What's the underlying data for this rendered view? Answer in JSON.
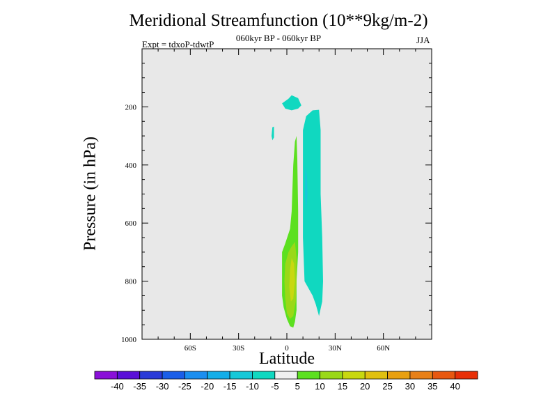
{
  "chart_data": {
    "type": "heatmap",
    "title": "Meridional Streamfunction (10**9kg/m-2)",
    "subtitle": "060kyr BP - 060kyr BP",
    "experiment": "Expt = tdxoP-tdwtP",
    "season": "JJA",
    "xlabel": "Latitude",
    "ylabel": "Pressure (in hPa)",
    "xlim": [
      -90,
      90
    ],
    "ylim": [
      0,
      1000
    ],
    "y_reversed": true,
    "plot_background": "#e8e8e8",
    "x_ticks": [
      {
        "value": -60,
        "label": "60S"
      },
      {
        "value": -30,
        "label": "30S"
      },
      {
        "value": 0,
        "label": "0"
      },
      {
        "value": 30,
        "label": "30N"
      },
      {
        "value": 60,
        "label": "60N"
      }
    ],
    "y_ticks": [
      {
        "value": 200,
        "label": "200"
      },
      {
        "value": 400,
        "label": "400"
      },
      {
        "value": 600,
        "label": "600"
      },
      {
        "value": 800,
        "label": "800"
      },
      {
        "value": 1000,
        "label": "1000"
      }
    ],
    "colorbar": {
      "colors": [
        "#8a10d8",
        "#5a10d8",
        "#2a3ad8",
        "#1a5ee8",
        "#1a8ef0",
        "#14aee8",
        "#16c8d8",
        "#10d8c0",
        "#f0f0f0",
        "#5ce020",
        "#9ad818",
        "#c8d810",
        "#e0c010",
        "#e8a010",
        "#e88018",
        "#e85810",
        "#e83008"
      ],
      "labels": [
        "-40",
        "-35",
        "-30",
        "-25",
        "-20",
        "-15",
        "-10",
        "-5",
        "5",
        "10",
        "15",
        "20",
        "25",
        "30",
        "35",
        "40"
      ]
    },
    "contours": [
      {
        "level": "-10 to -5",
        "color": "#10d8c0",
        "points": [
          [
            -3,
            188
          ],
          [
            1,
            172
          ],
          [
            3,
            160
          ],
          [
            7,
            170
          ],
          [
            9,
            195
          ],
          [
            7,
            206
          ],
          [
            3,
            212
          ],
          [
            -1,
            206
          ]
        ]
      },
      {
        "level": "-10 to -5",
        "color": "#10d8c0",
        "points": [
          [
            -9,
            270
          ],
          [
            -8,
            268
          ],
          [
            -8,
            305
          ],
          [
            -9,
            315
          ],
          [
            -9.5,
            300
          ]
        ]
      },
      {
        "level": "-10 to -5",
        "color": "#10d8c0",
        "points": [
          [
            10,
            280
          ],
          [
            12,
            232
          ],
          [
            16,
            212
          ],
          [
            20,
            210
          ],
          [
            21,
            280
          ],
          [
            21,
            500
          ],
          [
            22,
            650
          ],
          [
            22.5,
            800
          ],
          [
            22,
            870
          ],
          [
            20,
            920
          ],
          [
            18,
            880
          ],
          [
            16,
            850
          ],
          [
            11,
            800
          ],
          [
            10,
            650
          ],
          [
            10,
            450
          ]
        ]
      },
      {
        "level": "-15 to -10",
        "color": "#16c8d8",
        "points": [
          [
            11.5,
            400
          ],
          [
            12.5,
            440
          ],
          [
            12.8,
            500
          ],
          [
            12,
            560
          ],
          [
            11.3,
            500
          ]
        ]
      },
      {
        "level": "5 to 10",
        "color": "#5ce020",
        "points": [
          [
            3,
            560
          ],
          [
            4,
            400
          ],
          [
            5,
            320
          ],
          [
            6,
            300
          ],
          [
            6.5,
            380
          ],
          [
            7,
            560
          ],
          [
            7,
            700
          ],
          [
            6,
            800
          ],
          [
            6,
            900
          ],
          [
            5,
            940
          ],
          [
            4,
            960
          ],
          [
            2,
            955
          ],
          [
            0,
            930
          ],
          [
            -2,
            890
          ],
          [
            -3,
            850
          ],
          [
            -3,
            780
          ],
          [
            -3,
            700
          ],
          [
            -1,
            670
          ],
          [
            2,
            620
          ]
        ]
      },
      {
        "level": "10 to 15",
        "color": "#9ad818",
        "points": [
          [
            1,
            700
          ],
          [
            3,
            680
          ],
          [
            5,
            665
          ],
          [
            6,
            720
          ],
          [
            6,
            800
          ],
          [
            5.5,
            870
          ],
          [
            4,
            920
          ],
          [
            2,
            930
          ],
          [
            0,
            910
          ],
          [
            -1,
            860
          ],
          [
            -1.5,
            800
          ],
          [
            -1,
            740
          ]
        ]
      },
      {
        "level": "15 to 20",
        "color": "#c8d810",
        "points": [
          [
            3,
            720
          ],
          [
            4.5,
            740
          ],
          [
            5,
            800
          ],
          [
            4,
            860
          ],
          [
            2.5,
            870
          ],
          [
            1.5,
            820
          ],
          [
            2,
            760
          ]
        ]
      }
    ]
  }
}
